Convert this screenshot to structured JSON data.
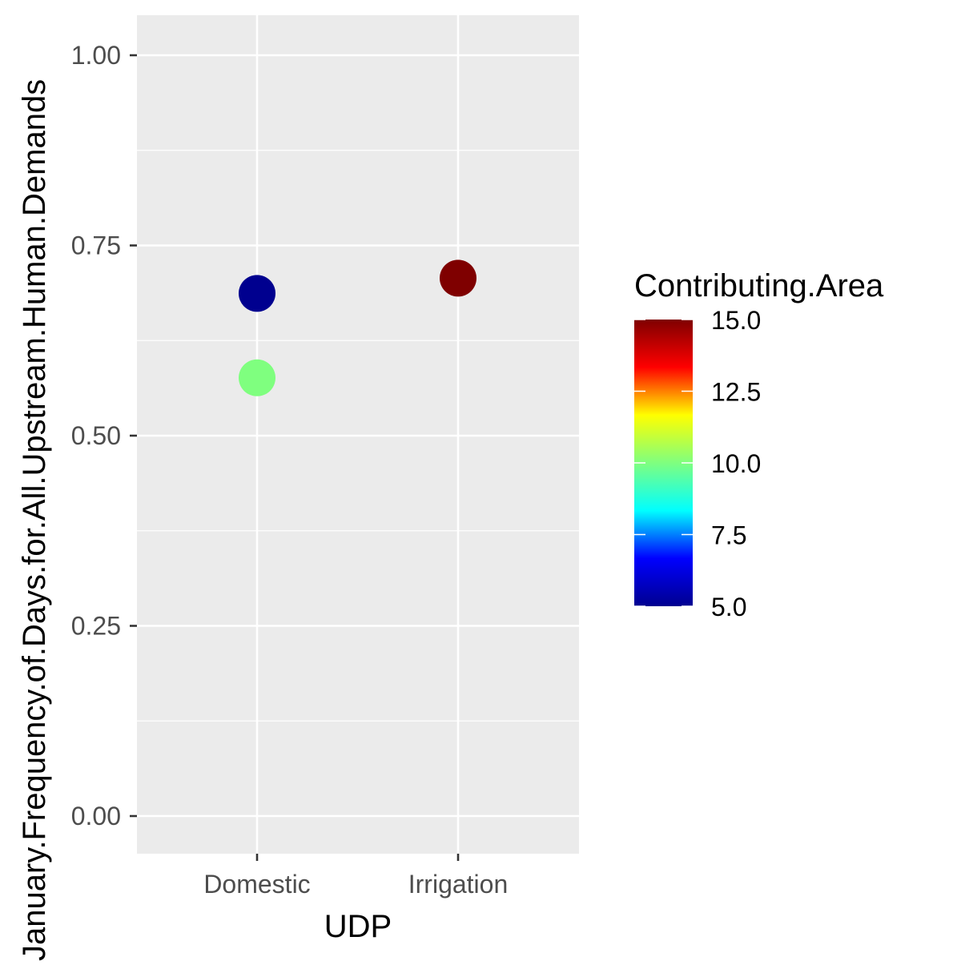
{
  "chart_data": {
    "type": "scatter",
    "title": "",
    "xlabel": "UDP",
    "ylabel": "January.Frequency.of.Days.for.All.Upstream.Human.Demands",
    "categories": [
      "Domestic",
      "Irrigation"
    ],
    "ylim": [
      -0.05,
      1.05
    ],
    "y_ticks": [
      {
        "value": 0.0,
        "label": "0.00"
      },
      {
        "value": 0.25,
        "label": "0.25"
      },
      {
        "value": 0.5,
        "label": "0.50"
      },
      {
        "value": 0.75,
        "label": "0.75"
      },
      {
        "value": 1.0,
        "label": "1.00"
      }
    ],
    "points": [
      {
        "x": "Domestic",
        "y": 0.687,
        "color_value": 5.0
      },
      {
        "x": "Domestic",
        "y": 0.576,
        "color_value": 10.0
      },
      {
        "x": "Irrigation",
        "y": 0.707,
        "color_value": 15.0
      }
    ],
    "grid": true,
    "panel_background": "#EBEBEB",
    "legend": {
      "title": "Contributing.Area",
      "placement": "right",
      "range": [
        5.0,
        15.0
      ],
      "ticks": [
        {
          "value": 15.0,
          "label": "15.0"
        },
        {
          "value": 12.5,
          "label": "12.5"
        },
        {
          "value": 10.0,
          "label": "10.0"
        },
        {
          "value": 7.5,
          "label": "7.5"
        },
        {
          "value": 5.0,
          "label": "5.0"
        }
      ],
      "colormap": [
        "#00008F",
        "#0000FF",
        "#00FFFF",
        "#7FFF7F",
        "#FFFF00",
        "#FF0000",
        "#7F0000"
      ]
    }
  }
}
